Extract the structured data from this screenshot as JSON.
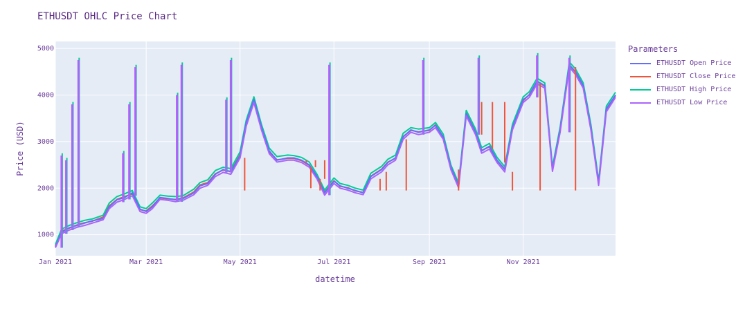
{
  "chart_data": {
    "type": "line",
    "title": "ETHUSDT OHLC Price Chart",
    "xlabel": "datetime",
    "ylabel": "Price (USD)",
    "ylim": [
      550,
      5150
    ],
    "yticks": [
      1000,
      2000,
      3000,
      4000,
      5000
    ],
    "xlim": [
      "2021-01-01",
      "2021-12-31"
    ],
    "xticks": [
      {
        "date": "2021-01-01",
        "label": "Jan 2021"
      },
      {
        "date": "2021-03-01",
        "label": "Mar 2021"
      },
      {
        "date": "2021-05-01",
        "label": "May 2021"
      },
      {
        "date": "2021-07-01",
        "label": "Jul 2021"
      },
      {
        "date": "2021-09-01",
        "label": "Sep 2021"
      },
      {
        "date": "2021-11-01",
        "label": "Nov 2021"
      }
    ],
    "legend_title": "Parameters",
    "legend_position": "top-right-outside",
    "dates": [
      "2021-01-01",
      "2021-01-05",
      "2021-01-10",
      "2021-01-15",
      "2021-01-20",
      "2021-01-25",
      "2021-02-01",
      "2021-02-05",
      "2021-02-10",
      "2021-02-15",
      "2021-02-20",
      "2021-02-25",
      "2021-03-01",
      "2021-03-05",
      "2021-03-10",
      "2021-03-15",
      "2021-03-20",
      "2021-03-25",
      "2021-04-01",
      "2021-04-05",
      "2021-04-10",
      "2021-04-15",
      "2021-04-20",
      "2021-04-25",
      "2021-05-01",
      "2021-05-05",
      "2021-05-10",
      "2021-05-15",
      "2021-05-20",
      "2021-05-25",
      "2021-06-01",
      "2021-06-05",
      "2021-06-10",
      "2021-06-15",
      "2021-06-20",
      "2021-06-25",
      "2021-07-01",
      "2021-07-05",
      "2021-07-10",
      "2021-07-15",
      "2021-07-20",
      "2021-07-25",
      "2021-08-01",
      "2021-08-05",
      "2021-08-10",
      "2021-08-15",
      "2021-08-20",
      "2021-08-25",
      "2021-09-01",
      "2021-09-05",
      "2021-09-10",
      "2021-09-15",
      "2021-09-20",
      "2021-09-25",
      "2021-10-01",
      "2021-10-05",
      "2021-10-10",
      "2021-10-15",
      "2021-10-20",
      "2021-10-25",
      "2021-11-01",
      "2021-11-05",
      "2021-11-10",
      "2021-11-15",
      "2021-11-20",
      "2021-11-25",
      "2021-12-01",
      "2021-12-05",
      "2021-12-10",
      "2021-12-15",
      "2021-12-20",
      "2021-12-25",
      "2021-12-31"
    ],
    "series": [
      {
        "name": "ETHUSDT Open Price",
        "color": "#636efa",
        "values": [
          740,
          1050,
          1150,
          1200,
          1250,
          1300,
          1350,
          1600,
          1750,
          1800,
          1900,
          1550,
          1500,
          1600,
          1800,
          1780,
          1750,
          1780,
          1900,
          2050,
          2100,
          2300,
          2400,
          2350,
          2700,
          3400,
          3900,
          3300,
          2800,
          2600,
          2650,
          2650,
          2600,
          2500,
          2250,
          1900,
          2150,
          2050,
          2000,
          1950,
          1900,
          2250,
          2400,
          2550,
          2650,
          3100,
          3250,
          3200,
          3250,
          3350,
          3100,
          2450,
          2050,
          3600,
          3200,
          2800,
          2900,
          2600,
          2400,
          3300,
          3900,
          4000,
          4300,
          4200,
          2400,
          3250,
          4650,
          4500,
          4200,
          3300,
          2100,
          3700,
          4000
        ]
      },
      {
        "name": "ETHUSDT Close Price",
        "color": "#ef553b",
        "values": [
          760,
          1080,
          1140,
          1210,
          1260,
          1290,
          1380,
          1620,
          1760,
          1820,
          1880,
          1540,
          1510,
          1620,
          1790,
          1770,
          1760,
          1790,
          1920,
          2070,
          2120,
          2310,
          2390,
          2360,
          2720,
          3380,
          3880,
          3280,
          2780,
          2610,
          2640,
          2640,
          2590,
          2490,
          2240,
          1910,
          2160,
          2040,
          2010,
          1940,
          1910,
          2260,
          2410,
          2560,
          2640,
          3110,
          3240,
          3210,
          3240,
          3360,
          3090,
          2440,
          2060,
          3610,
          3210,
          2810,
          2890,
          2590,
          2410,
          3310,
          3880,
          4010,
          4290,
          4190,
          2410,
          3260,
          4640,
          4490,
          4190,
          3310,
          2110,
          3690,
          3990
        ]
      },
      {
        "name": "ETHUSDT High Price",
        "color": "#00cc96",
        "values": [
          790,
          1120,
          1200,
          1260,
          1310,
          1340,
          1420,
          1680,
          1820,
          1880,
          1950,
          1600,
          1560,
          1680,
          1850,
          1830,
          1820,
          1840,
          1980,
          2120,
          2180,
          2380,
          2450,
          2420,
          2780,
          3460,
          3960,
          3360,
          2860,
          2680,
          2710,
          2700,
          2660,
          2560,
          2300,
          1960,
          2220,
          2100,
          2060,
          2000,
          1960,
          2320,
          2470,
          2620,
          2710,
          3180,
          3300,
          3270,
          3300,
          3410,
          3160,
          2500,
          2110,
          3670,
          3270,
          2870,
          2960,
          2660,
          2460,
          3370,
          3960,
          4070,
          4360,
          4260,
          2460,
          3310,
          4710,
          4560,
          4260,
          3370,
          2160,
          3760,
          4060
        ]
      },
      {
        "name": "ETHUSDT Low Price",
        "color": "#ab63fa",
        "values": [
          720,
          1020,
          1100,
          1160,
          1200,
          1250,
          1320,
          1560,
          1700,
          1760,
          1840,
          1500,
          1460,
          1560,
          1760,
          1740,
          1710,
          1740,
          1860,
          2000,
          2060,
          2250,
          2340,
          2300,
          2650,
          3330,
          3840,
          3240,
          2740,
          2560,
          2600,
          2600,
          2550,
          2450,
          2200,
          1850,
          2100,
          2000,
          1960,
          1900,
          1860,
          2200,
          2350,
          2500,
          2600,
          3050,
          3200,
          3150,
          3200,
          3300,
          3050,
          2400,
          2010,
          3550,
          3150,
          2750,
          2840,
          2550,
          2350,
          3250,
          3840,
          3950,
          4240,
          4150,
          2360,
          3200,
          4600,
          4440,
          4150,
          3250,
          2060,
          3640,
          3950
        ]
      }
    ],
    "spikes": [
      {
        "date": "2021-01-05",
        "high": 2750
      },
      {
        "date": "2021-01-08",
        "high": 2650
      },
      {
        "date": "2021-01-12",
        "high": 3850
      },
      {
        "date": "2021-01-16",
        "high": 4800
      },
      {
        "date": "2021-02-14",
        "high": 2800
      },
      {
        "date": "2021-02-18",
        "high": 3850
      },
      {
        "date": "2021-02-22",
        "high": 4650
      },
      {
        "date": "2021-03-21",
        "high": 4050
      },
      {
        "date": "2021-03-24",
        "high": 4700
      },
      {
        "date": "2021-04-22",
        "high": 3950
      },
      {
        "date": "2021-04-25",
        "high": 4800
      },
      {
        "date": "2021-06-28",
        "high": 4700
      },
      {
        "date": "2021-08-28",
        "high": 4800
      },
      {
        "date": "2021-10-03",
        "high": 4850
      },
      {
        "date": "2021-11-10",
        "high": 4900
      },
      {
        "date": "2021-12-01",
        "high": 4850
      }
    ],
    "close_drops": [
      {
        "date": "2021-05-04",
        "low": 1950
      },
      {
        "date": "2021-06-13",
        "low": 2600
      },
      {
        "date": "2021-06-16",
        "low": 2000
      },
      {
        "date": "2021-06-19",
        "low": 2600
      },
      {
        "date": "2021-06-22",
        "low": 1950
      },
      {
        "date": "2021-06-25",
        "low": 2600
      },
      {
        "date": "2021-06-28",
        "low": 2000
      },
      {
        "date": "2021-07-31",
        "low": 1950
      },
      {
        "date": "2021-08-04",
        "low": 1950
      },
      {
        "date": "2021-08-11",
        "low": 2600
      },
      {
        "date": "2021-08-17",
        "low": 1950
      },
      {
        "date": "2021-09-20",
        "low": 1950
      },
      {
        "date": "2021-10-05",
        "low": 3850
      },
      {
        "date": "2021-10-12",
        "low": 3850
      },
      {
        "date": "2021-10-20",
        "low": 3850
      },
      {
        "date": "2021-10-25",
        "low": 1950
      },
      {
        "date": "2021-11-12",
        "low": 1950
      },
      {
        "date": "2021-12-05",
        "low": 1950
      }
    ]
  }
}
